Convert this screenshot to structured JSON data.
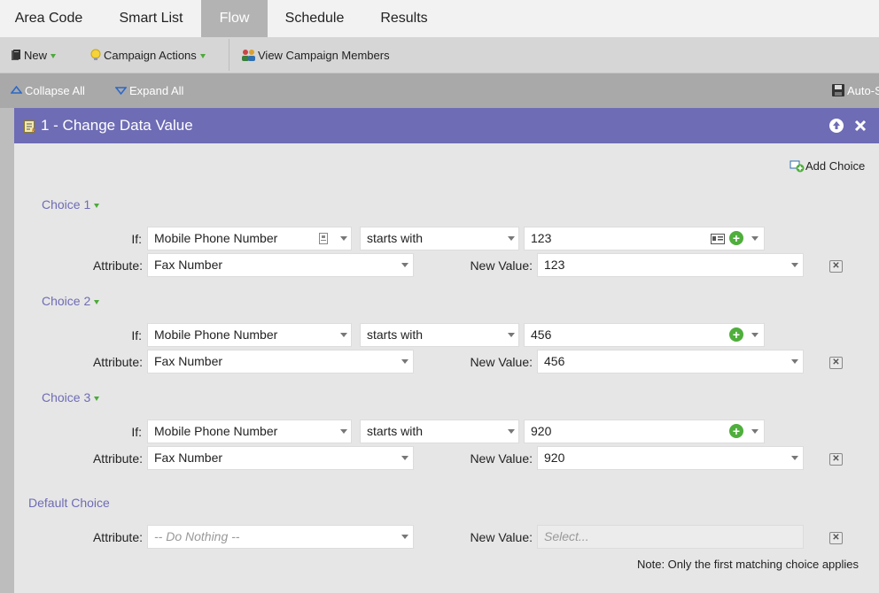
{
  "tabs": [
    {
      "label": "Area Code",
      "active": false
    },
    {
      "label": "Smart List",
      "active": false
    },
    {
      "label": "Flow",
      "active": true
    },
    {
      "label": "Schedule",
      "active": false
    },
    {
      "label": "Results",
      "active": false
    }
  ],
  "toolbar": {
    "new_label": "New",
    "campaign_actions_label": "Campaign Actions",
    "view_members_label": "View Campaign Members"
  },
  "subbar": {
    "collapse_label": "Collapse All",
    "expand_label": "Expand All",
    "autosave_label": "Auto-S"
  },
  "step": {
    "title": "1 - Change Data Value",
    "add_choice_label": "Add Choice",
    "if_label": "If:",
    "attribute_label": "Attribute:",
    "new_value_label": "New Value:",
    "choices": [
      {
        "name": "Choice 1",
        "field": "Mobile Phone Number",
        "operator": "starts with",
        "value": "123",
        "attribute": "Fax Number",
        "new_value": "123"
      },
      {
        "name": "Choice 2",
        "field": "Mobile Phone Number",
        "operator": "starts with",
        "value": "456",
        "attribute": "Fax Number",
        "new_value": "456"
      },
      {
        "name": "Choice 3",
        "field": "Mobile Phone Number",
        "operator": "starts with",
        "value": "920",
        "attribute": "Fax Number",
        "new_value": "920"
      }
    ],
    "default_choice": {
      "name": "Default Choice",
      "attribute": "-- Do Nothing --",
      "new_value_placeholder": "Select..."
    },
    "note": "Note: Only the first matching choice applies"
  },
  "colors": {
    "header": "#6e6cb5",
    "accent_green": "#4fae3c"
  }
}
